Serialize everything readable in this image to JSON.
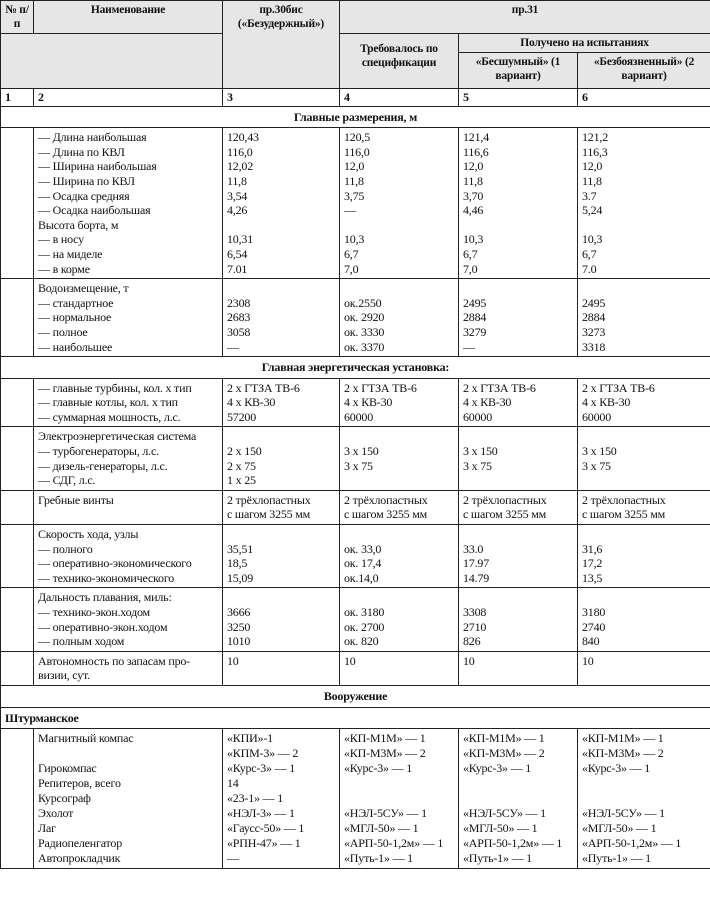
{
  "header": {
    "num": "№ п/п",
    "name": "Наименование",
    "pr30": "пр.30бис («Безудержный»)",
    "pr31": "пр.31",
    "required": "Требовалось по спецификации",
    "obtained": "Получено на испытаниях",
    "ship1": "«Бесшумный» (1 вариант)",
    "ship2": "«Безбоязненный» (2 вариант)",
    "col_numbers": [
      "1",
      "2",
      "3",
      "4",
      "5",
      "6"
    ]
  },
  "sections": [
    {
      "title": "Главные размерения, м",
      "groups": [
        {
          "name": [
            "— Длина наибольшая",
            "— Длина по КВЛ",
            "— Ширина наибольшая",
            "— Ширина по КВЛ",
            "— Осадка средняя",
            "— Осадка наибольшая",
            "Высота борта, м",
            "— в носу",
            "— на миделе",
            "— в корме"
          ],
          "cols": [
            [
              "120,43",
              "116,0",
              "12,02",
              "11,8",
              "3,54",
              "4,26",
              "",
              "10,31",
              "6,54",
              "7.01"
            ],
            [
              "120,5",
              "116,0",
              "12,0",
              "11,8",
              "3,75",
              "—",
              "",
              "10,3",
              "6,7",
              "7,0"
            ],
            [
              "121,4",
              "116,6",
              "12,0",
              "11,8",
              "3,70",
              "4,46",
              "",
              "10,3",
              "6,7",
              "7,0"
            ],
            [
              "121,2",
              "116,3",
              "12,0",
              "11,8",
              "3.7",
              "5,24",
              "",
              "10,3",
              "6,7",
              "7.0"
            ]
          ]
        },
        {
          "name": [
            "Водоизмещение, т",
            "— стандартное",
            "— нормальное",
            "— полное",
            "— наибольшее"
          ],
          "cols": [
            [
              "",
              "2308",
              "2683",
              "3058",
              "—"
            ],
            [
              "",
              "ок.2550",
              "ок. 2920",
              "ок. 3330",
              "ок. 3370"
            ],
            [
              "",
              "2495",
              "2884",
              "3279",
              "—"
            ],
            [
              "",
              "2495",
              "2884",
              "3273",
              "3318"
            ]
          ]
        }
      ]
    },
    {
      "title": "Главная энергетическая установка:",
      "groups": [
        {
          "name": [
            "— главные турбины, кол. х тип",
            "— главные котлы, кол. х тип",
            "— суммарная мошность, л.с."
          ],
          "cols": [
            [
              "2 х ГТЗА ТВ-6",
              "4 х КВ-30",
              "57200"
            ],
            [
              "2 х ГТЗА ТВ-6",
              "4 х КВ-30",
              "60000"
            ],
            [
              "2 х ГТЗА ТВ-6",
              "4 х КВ-30",
              "60000"
            ],
            [
              "2 х ГТЗА ТВ-6",
              "4 х КВ-30",
              "60000"
            ]
          ]
        },
        {
          "name": [
            "Электроэнергетическая система",
            "— турбогенераторы, л.с.",
            "— дизель-генераторы, л.с.",
            "— СДГ, л.с."
          ],
          "cols": [
            [
              "",
              "2 х 150",
              "2 х 75",
              "1 х 25"
            ],
            [
              "",
              "3 х 150",
              "3 х 75",
              ""
            ],
            [
              "",
              "3 х 150",
              "3 х 75",
              ""
            ],
            [
              "",
              "3 х 150",
              "3 х 75",
              ""
            ]
          ]
        },
        {
          "name": [
            "Гребные винты",
            ""
          ],
          "cols": [
            [
              "2 трёхлопастных",
              "с шагом 3255 мм"
            ],
            [
              "2 трёхлопастных",
              "с шагом 3255 мм"
            ],
            [
              "2 трёхлопастных",
              "с шагом 3255 мм"
            ],
            [
              "2 трёхлопастных",
              "с шагом 3255 мм"
            ]
          ]
        },
        {
          "name": [
            "Скорость хода, узлы",
            "— полного",
            "— оперативно-экономического",
            "— технико-экономического"
          ],
          "cols": [
            [
              "",
              "35,51",
              "18,5",
              "15,09"
            ],
            [
              "",
              "ок. 33,0",
              "ок. 17,4",
              "ок.14,0"
            ],
            [
              "",
              "33.0",
              "17.97",
              "14.79"
            ],
            [
              "",
              "31,6",
              "17,2",
              "13,5"
            ]
          ]
        },
        {
          "name": [
            "Дальность плавания, миль:",
            "— технико-экон.ходом",
            "— оперативно-экон.ходом",
            "— полным ходом"
          ],
          "cols": [
            [
              "",
              "3666",
              "3250",
              "1010"
            ],
            [
              "",
              "ок. 3180",
              "ок. 2700",
              "ок. 820"
            ],
            [
              "",
              "3308",
              "2710",
              "826"
            ],
            [
              "",
              "3180",
              "2740",
              "840"
            ]
          ]
        },
        {
          "name": [
            "Автономность по запасам про-",
            "визии, сут."
          ],
          "cols": [
            [
              "10"
            ],
            [
              "10"
            ],
            [
              "10"
            ],
            [
              "10"
            ]
          ]
        }
      ]
    },
    {
      "title": "Вооружение",
      "subtitle": "Штурманское",
      "nav": true,
      "groups": [
        {
          "name": [
            "Магнитный компас",
            "",
            "Гирокомпас",
            "Репитеров, всего",
            "Курсограф",
            "Эхолот",
            "Лаг",
            "Радиопеленгатор",
            "Автопрокладчик"
          ],
          "cols": [
            [
              "«КПИ»-1",
              "«КПМ-3» — 2",
              "«Курс-3» — 1",
              "14",
              "«23-1» — 1",
              "«НЭЛ-3» — 1",
              "«Гаусс-50» — 1",
              "«РПН-47» — 1",
              "—"
            ],
            [
              "«КП-М1М» — 1",
              "«КП-М3М» — 2",
              "«Курс-3» — 1",
              "",
              "",
              "«НЭЛ-5СУ» — 1",
              "«МГЛ-50» — 1",
              "«АРП-50-1,2м» — 1",
              "«Путь-1» — 1"
            ],
            [
              "«КП-М1М» — 1",
              "«КП-М3М» — 2",
              "«Курс-3» — 1",
              "",
              "",
              "«НЭЛ-5СУ» — 1",
              "«МГЛ-50» — 1",
              "«АРП-50-1,2м» — 1",
              "«Путь-1» — 1"
            ],
            [
              "«КП-М1М» — 1",
              "«КП-М3М» — 2",
              "«Курс-3» — 1",
              "",
              "",
              "«НЭЛ-5СУ» — 1",
              "«МГЛ-50» — 1",
              "«АРП-50-1,2м» — 1",
              "«Путь-1» — 1"
            ]
          ]
        }
      ]
    }
  ]
}
